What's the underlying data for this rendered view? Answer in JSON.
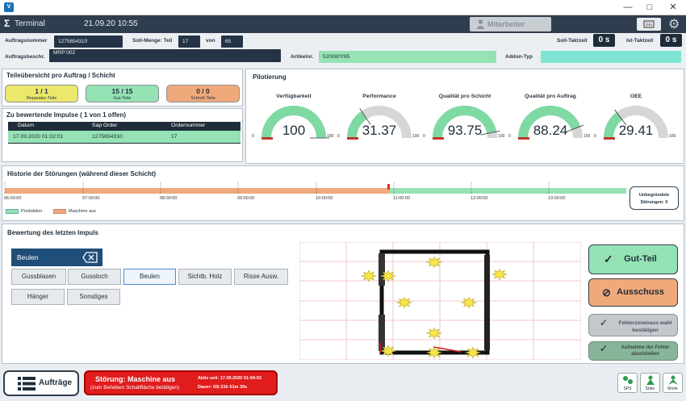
{
  "window": {
    "icon": "V",
    "minimize": "—",
    "maximize": "□",
    "close": "✕"
  },
  "header": {
    "title": "Terminal",
    "datetime": "21.09.20 10:55",
    "employee_button": "Mitarbeiter",
    "logo": "Σ"
  },
  "orders": {
    "auftragsnummer_label": "Auftragsnummer",
    "auftragsnummer": "1275654310",
    "soll_menge_label": "Soll-Menge: Teil",
    "soll_menge": "17",
    "von_label": "von",
    "von": "65",
    "soll_taktzeit_label": "Soll-Taktzeit",
    "soll_taktzeit": "0 s",
    "ist_taktzeit_label": "Ist-Taktzeit",
    "ist_taktzeit": "0 s",
    "auftragsbeschr_label": "Auftragsbeschr.",
    "auftragsbeschr": "MRP:002",
    "artikelnr_label": "Artikelnr.",
    "artikelnr": "520080Y85",
    "addon_label": "Addon-Typ",
    "addon": ""
  },
  "parts": {
    "title": "Teileübersicht pro Auftrag / Schicht",
    "tiles": [
      {
        "value": "1 / 1",
        "label": "Reparatur-Teile",
        "color": "#ebe86b"
      },
      {
        "value": "15 / 15",
        "label": "Gut-Teile",
        "color": "#95e2b4"
      },
      {
        "value": "0 / 0",
        "label": "Schrott-Teile",
        "color": "#f0a97a"
      }
    ]
  },
  "impulses": {
    "title": "Zu bewertende Impulse ( 1 von  1  offen)",
    "headers": [
      "Datum",
      "Sap Order",
      "Ordernummer"
    ],
    "rows": [
      [
        "17.09.2020 01:02:01",
        "1275654310",
        "17"
      ]
    ]
  },
  "pilot": {
    "title": "Pilotierung",
    "gauges": [
      {
        "label": "Verfügbarkeit",
        "value": "100",
        "fraction": 1.0
      },
      {
        "label": "Performance",
        "value": "31.37",
        "fraction": 0.3137
      },
      {
        "label": "Qualität pro Schicht",
        "value": "93.75",
        "fraction": 0.9375
      },
      {
        "label": "Qualität pro Auftrag",
        "value": "88.24",
        "fraction": 0.8824
      },
      {
        "label": "OEE",
        "value": "29.41",
        "fraction": 0.2941
      }
    ],
    "scale_min": "0",
    "scale_max": "100",
    "fill_color": "#7fd9a3",
    "empty_color": "#d6d6d6"
  },
  "history": {
    "title": "Historie der Störungen (während dieser Schicht)",
    "ticks": [
      "06:00:00",
      "07:00:00",
      "08:00:00",
      "09:00:00",
      "10:00:00",
      "11:00:00",
      "12:00:00",
      "13:00:00"
    ],
    "legend": [
      {
        "label": "Produktion",
        "color": "#95e2b4"
      },
      {
        "label": "Maschine aus",
        "color": "#f0a97a"
      }
    ],
    "unbegruendet_label": "Unbegründete",
    "unbegruendet_value": "Störungen: 0"
  },
  "evaluation": {
    "title": "Bewertung des letzten Impuls",
    "selected": "Beulen",
    "defects": [
      "Gussblasen",
      "Gussloch",
      "Beulen",
      "Sichtb. Holz",
      "Risse Ausw.",
      "Hänger",
      "Sonstiges"
    ]
  },
  "actions": {
    "gut": "Gut-Teil",
    "ausschuss": "Ausschuss",
    "fehlerzonen": "Fehlerzonenaus wahl bestätigen",
    "aufnahme": "Aufnahme der Fehler abschließen"
  },
  "bottom": {
    "auftraege": "Aufträge",
    "stoerung_title": "Störung: Maschine aus",
    "stoerung_sub": "(zum Beheben Schaltfläche betätigen)",
    "aktiv_seit": "Aktiv seit: 17.09.2020 01:04:02",
    "dauer": "Dauer: 03t 21h 51m 39s",
    "sps": "SPS",
    "state": "State",
    "mode": "Mode"
  }
}
